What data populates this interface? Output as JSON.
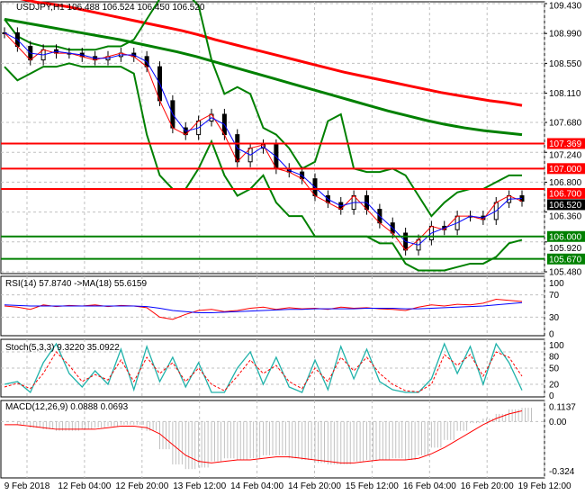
{
  "chart_data": {
    "type": "line",
    "title": "USDJPY,H1",
    "ohlc": {
      "open": "106.488",
      "high": "106.524",
      "low": "106.450",
      "close": "106.520"
    },
    "price_axis": {
      "range": [
        105.48,
        109.43
      ],
      "ticks": [
        "109.430",
        "108.990",
        "108.550",
        "108.110",
        "107.680",
        "107.240",
        "106.800",
        "106.360",
        "105.920",
        "105.480"
      ]
    },
    "levels": [
      {
        "value": 107.369,
        "label": "107.369",
        "color": "#ff0000"
      },
      {
        "value": 107.0,
        "label": "107.000",
        "color": "#ff0000"
      },
      {
        "value": 106.7,
        "label": "106.700",
        "color": "#ff0000"
      },
      {
        "value": 106.0,
        "label": "106.000",
        "color": "#008000"
      },
      {
        "value": 105.67,
        "label": "105.670",
        "color": "#008000"
      }
    ],
    "current_price": {
      "value": 106.52,
      "label": "106.520"
    },
    "time_labels": [
      "9 Feb 2018",
      "12 Feb 04:00",
      "12 Feb 20:00",
      "13 Feb 12:00",
      "14 Feb 04:00",
      "14 Feb 20:00",
      "15 Feb 12:00",
      "16 Feb 04:00",
      "16 Feb 20:00",
      "19 Feb 12:00"
    ],
    "close": [
      109.0,
      108.8,
      108.6,
      108.75,
      108.7,
      108.7,
      108.65,
      108.6,
      108.65,
      108.7,
      108.65,
      108.5,
      108.0,
      107.6,
      107.5,
      107.7,
      107.8,
      107.5,
      107.1,
      107.3,
      107.35,
      107.0,
      106.95,
      106.85,
      106.6,
      106.5,
      106.4,
      106.6,
      106.4,
      106.2,
      106.05,
      105.8,
      105.95,
      106.15,
      106.1,
      106.3,
      106.3,
      106.25,
      106.5,
      106.6,
      106.52
    ],
    "bb_upper": [
      109.2,
      108.95,
      108.85,
      108.8,
      108.8,
      108.75,
      108.75,
      108.75,
      108.8,
      108.8,
      108.9,
      109.2,
      109.5,
      109.6,
      109.6,
      109.4,
      108.6,
      108.1,
      108.2,
      108.1,
      107.6,
      107.5,
      107.3,
      107.0,
      107.1,
      107.7,
      107.8,
      107.0,
      106.95,
      106.95,
      107.0,
      106.9,
      106.6,
      106.3,
      106.5,
      106.65,
      106.7,
      106.7,
      106.8,
      106.9,
      106.9
    ],
    "bb_lower": [
      108.5,
      108.3,
      108.4,
      108.5,
      108.5,
      108.55,
      108.5,
      108.5,
      108.5,
      108.5,
      108.4,
      107.5,
      106.9,
      106.7,
      106.7,
      107.0,
      107.4,
      106.9,
      106.6,
      106.7,
      106.9,
      106.5,
      106.3,
      106.3,
      106.0,
      106.0,
      106.0,
      106.0,
      106.0,
      105.9,
      105.9,
      105.6,
      105.5,
      105.5,
      105.5,
      105.55,
      105.6,
      105.6,
      105.7,
      105.9,
      105.95
    ],
    "ma_slow_red": [
      109.55,
      109.5,
      109.45,
      109.42,
      109.38,
      109.33,
      109.28,
      109.23,
      109.18,
      109.13,
      109.08,
      109.03,
      108.97,
      108.9,
      108.84,
      108.78,
      108.72,
      108.66,
      108.6,
      108.54,
      108.48,
      108.42,
      108.37,
      108.32,
      108.27,
      108.22,
      108.17,
      108.12,
      108.08,
      108.04,
      108.0,
      107.97,
      107.93
    ],
    "ma_green": [
      109.2,
      109.15,
      109.1,
      109.05,
      109.0,
      108.95,
      108.9,
      108.84,
      108.78,
      108.72,
      108.65,
      108.57,
      108.49,
      108.41,
      108.33,
      108.25,
      108.17,
      108.09,
      108.01,
      107.93,
      107.85,
      107.78,
      107.71,
      107.65,
      107.6,
      107.56,
      107.53,
      107.5
    ],
    "rsi": {
      "label": "RSI(14) 57.8740 ->MA(18) 55.6159",
      "ticks": [
        "100",
        "70",
        "30",
        "0"
      ],
      "rsi": [
        50,
        48,
        44,
        52,
        49,
        51,
        50,
        52,
        49,
        51,
        50,
        47,
        30,
        26,
        35,
        42,
        44,
        40,
        42,
        46,
        48,
        44,
        47,
        45,
        46,
        44,
        48,
        46,
        47,
        45,
        44,
        42,
        48,
        52,
        50,
        53,
        52,
        55,
        62,
        60,
        58
      ],
      "ma": [
        52,
        51,
        50,
        50,
        50,
        50,
        50,
        50,
        50,
        50,
        50,
        49,
        46,
        42,
        40,
        38,
        38,
        39,
        40,
        41,
        42,
        43,
        44,
        44,
        45,
        45,
        45,
        45,
        46,
        46,
        46,
        45,
        45,
        46,
        47,
        48,
        49,
        50,
        52,
        54,
        56
      ]
    },
    "stoch": {
      "label": "Stoch(5,3,3) 9.3220 35.0922",
      "ticks": [
        "100",
        "80",
        "50",
        "20",
        "0"
      ],
      "main": [
        20,
        25,
        5,
        60,
        95,
        40,
        15,
        45,
        20,
        85,
        10,
        90,
        25,
        70,
        15,
        60,
        5,
        5,
        50,
        80,
        20,
        70,
        15,
        5,
        65,
        10,
        90,
        30,
        85,
        25,
        10,
        5,
        5,
        30,
        95,
        40,
        90,
        20,
        95,
        60,
        9
      ],
      "signal": [
        15,
        22,
        12,
        40,
        80,
        55,
        25,
        38,
        28,
        65,
        25,
        70,
        40,
        60,
        25,
        50,
        20,
        8,
        35,
        65,
        40,
        55,
        25,
        12,
        50,
        25,
        70,
        45,
        70,
        40,
        20,
        8,
        6,
        20,
        75,
        55,
        75,
        35,
        80,
        70,
        35
      ]
    },
    "macd": {
      "label": "MACD(12,26,9) 0.0888 0.0693",
      "ticks": [
        "0.1137",
        "0.00",
        "-0.324"
      ],
      "range": [
        -0.35,
        0.12
      ],
      "hist": [
        0,
        -0.02,
        -0.04,
        -0.05,
        -0.06,
        -0.06,
        -0.05,
        -0.04,
        -0.03,
        -0.02,
        -0.02,
        -0.06,
        -0.18,
        -0.28,
        -0.31,
        -0.3,
        -0.26,
        -0.24,
        -0.25,
        -0.24,
        -0.22,
        -0.22,
        -0.24,
        -0.25,
        -0.27,
        -0.28,
        -0.28,
        -0.26,
        -0.25,
        -0.25,
        -0.24,
        -0.25,
        -0.22,
        -0.17,
        -0.12,
        -0.06,
        -0.01,
        0.02,
        0.05,
        0.08,
        0.09
      ],
      "signal": [
        -0.02,
        -0.02,
        -0.03,
        -0.04,
        -0.05,
        -0.05,
        -0.05,
        -0.05,
        -0.04,
        -0.03,
        -0.03,
        -0.04,
        -0.08,
        -0.15,
        -0.22,
        -0.26,
        -0.27,
        -0.26,
        -0.25,
        -0.25,
        -0.24,
        -0.23,
        -0.23,
        -0.24,
        -0.25,
        -0.26,
        -0.27,
        -0.27,
        -0.26,
        -0.25,
        -0.25,
        -0.25,
        -0.24,
        -0.21,
        -0.17,
        -0.12,
        -0.07,
        -0.02,
        0.02,
        0.05,
        0.07
      ]
    }
  },
  "colors": {
    "up_level": "#ff0000",
    "down_level": "#008000",
    "bands": "#008000",
    "rsi": "#ff0000",
    "rsi_ma": "#0000ff",
    "stoch_main": "#20b2aa",
    "stoch_signal": "#ff0000",
    "macd_hist": "#c0c0c0",
    "macd_signal": "#ff0000"
  }
}
